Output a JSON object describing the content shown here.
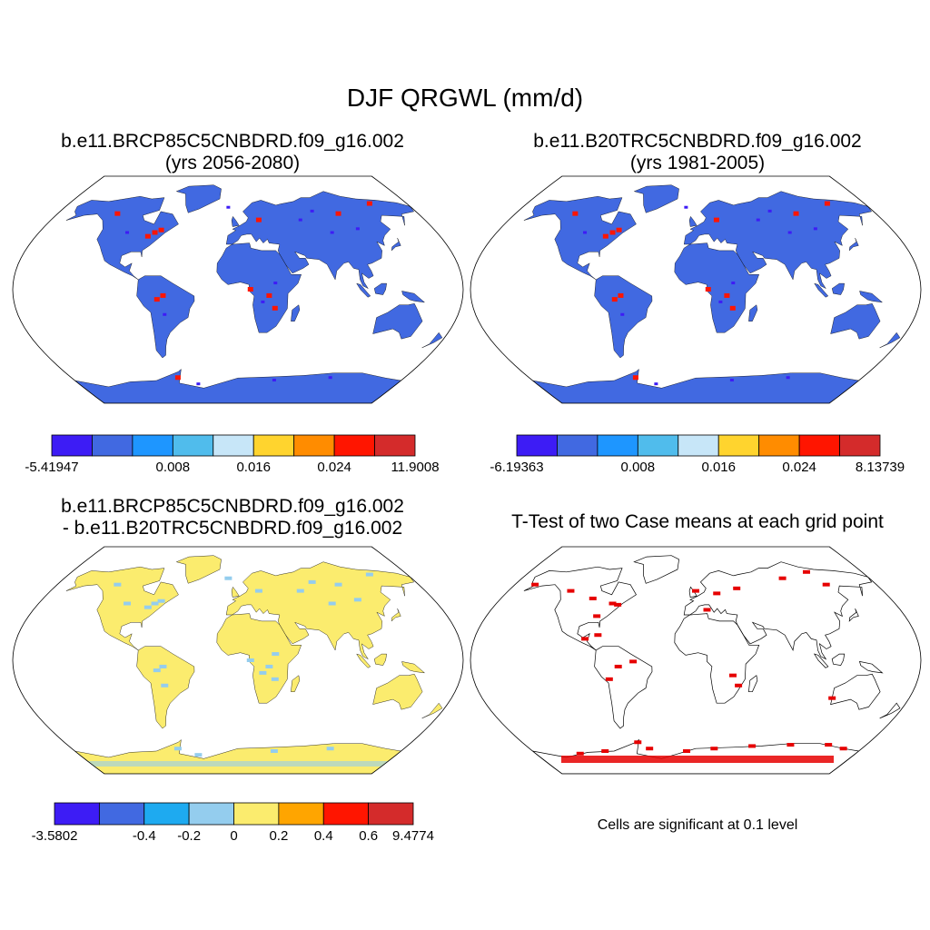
{
  "title": "DJF QRGWL (mm/d)",
  "panels": [
    {
      "title_line1": "b.e11.BRCP85C5CNBDRD.f09_g16.002",
      "title_line2": "(yrs 2056-2080)",
      "land_color": "#4169e1",
      "colorbar": {
        "colors": [
          "#3d1cf5",
          "#4169e1",
          "#1e96ff",
          "#50bcec",
          "#c7e6f8",
          "#ffd42e",
          "#ff8c00",
          "#ff1500",
          "#d42b2b"
        ],
        "labels": [
          "-5.41947",
          "0.008",
          "0.016",
          "0.024",
          "11.9008"
        ],
        "label_positions": [
          0,
          3,
          5,
          7,
          9
        ]
      }
    },
    {
      "title_line1": "b.e11.B20TRC5CNBDRD.f09_g16.002",
      "title_line2": "(yrs 1981-2005)",
      "land_color": "#4169e1",
      "colorbar": {
        "colors": [
          "#3d1cf5",
          "#4169e1",
          "#1e96ff",
          "#50bcec",
          "#c7e6f8",
          "#ffd42e",
          "#ff8c00",
          "#ff1500",
          "#d42b2b"
        ],
        "labels": [
          "-6.19363",
          "0.008",
          "0.016",
          "0.024",
          "8.13739"
        ],
        "label_positions": [
          0,
          3,
          5,
          7,
          9
        ]
      }
    },
    {
      "title_line1": "b.e11.BRCP85C5CNBDRD.f09_g16.002",
      "title_line2": "- b.e11.B20TRC5CNBDRD.f09_g16.002",
      "land_color": "#fbec6e",
      "colorbar": {
        "colors": [
          "#3d1cf5",
          "#4169e1",
          "#1eaaf0",
          "#94cdee",
          "#fbec6e",
          "#ffa500",
          "#ff1500",
          "#d42b2b"
        ],
        "labels": [
          "-3.5802",
          "-0.4",
          "-0.2",
          "0",
          "0.2",
          "0.4",
          "0.6",
          "9.4774"
        ],
        "label_positions": [
          0,
          2,
          3,
          4,
          5,
          6,
          7,
          8
        ]
      }
    },
    {
      "title_line1": "T-Test of two Case means at each grid point",
      "note": "Cells are significant at 0.1 level",
      "sig_color": "#e60000"
    }
  ]
}
